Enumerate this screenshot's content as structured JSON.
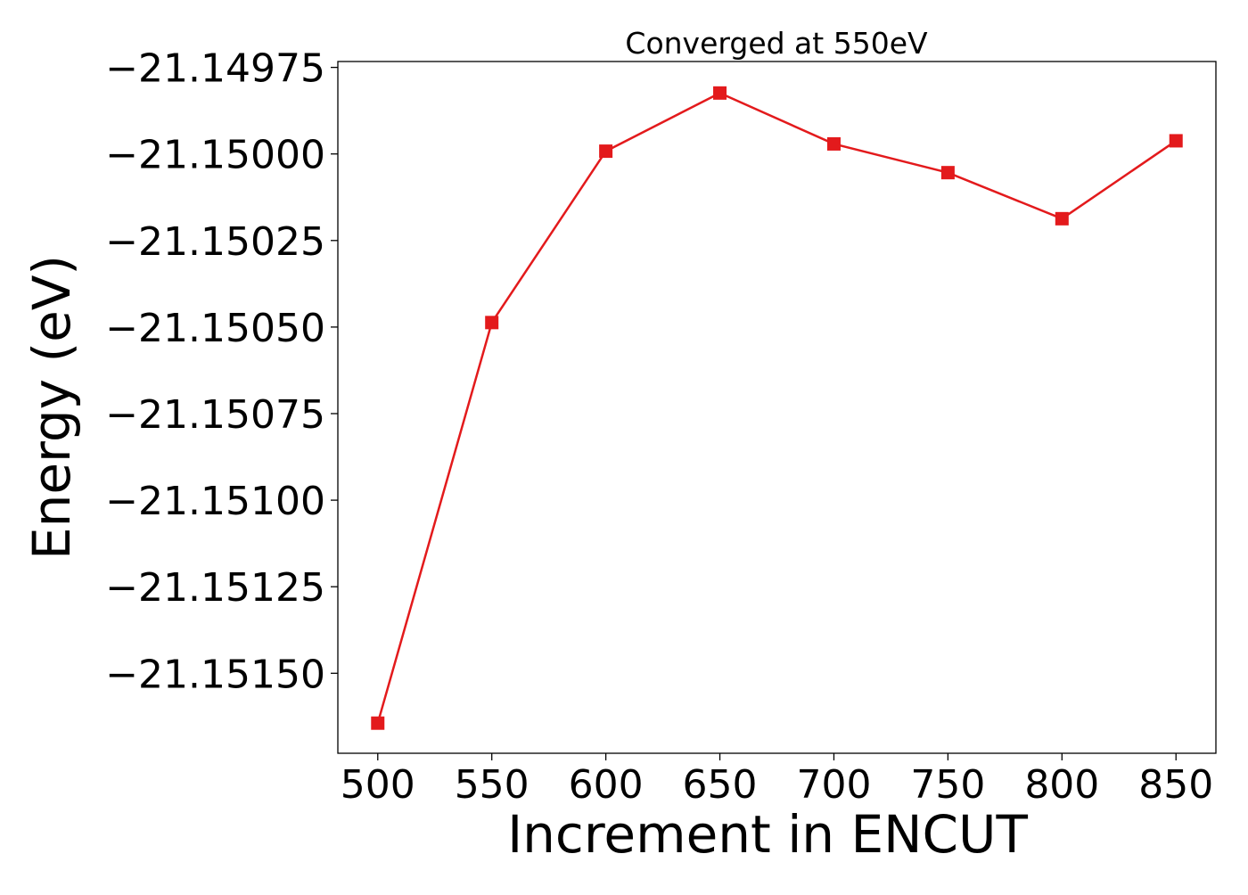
{
  "chart_data": {
    "type": "line",
    "title": "Converged at 550eV",
    "xlabel": "Increment in ENCUT",
    "ylabel": "Energy (eV)",
    "x": [
      500,
      550,
      600,
      650,
      700,
      750,
      800,
      850
    ],
    "series": [
      {
        "values": [
          -21.151644,
          -21.150487,
          -21.149992,
          -21.149824,
          -21.149971,
          -21.150054,
          -21.150187,
          -21.149962
        ],
        "color": "#e31a1c",
        "marker": "square"
      }
    ],
    "xticks": [
      500,
      550,
      600,
      650,
      700,
      750,
      800,
      850
    ],
    "xtick_labels": [
      "500",
      "550",
      "600",
      "650",
      "700",
      "750",
      "800",
      "850"
    ],
    "yticks": [
      -21.1515,
      -21.15125,
      -21.151,
      -21.15075,
      -21.1505,
      -21.15025,
      -21.15,
      -21.14975
    ],
    "ytick_labels": [
      "−21.15150",
      "−21.15125",
      "−21.15100",
      "−21.15075",
      "−21.15050",
      "−21.15025",
      "−21.15000",
      "−21.14975"
    ],
    "xlim": [
      482.5,
      867.5
    ],
    "ylim": [
      -21.151731,
      -21.149733
    ],
    "grid": false,
    "legend": "none"
  }
}
